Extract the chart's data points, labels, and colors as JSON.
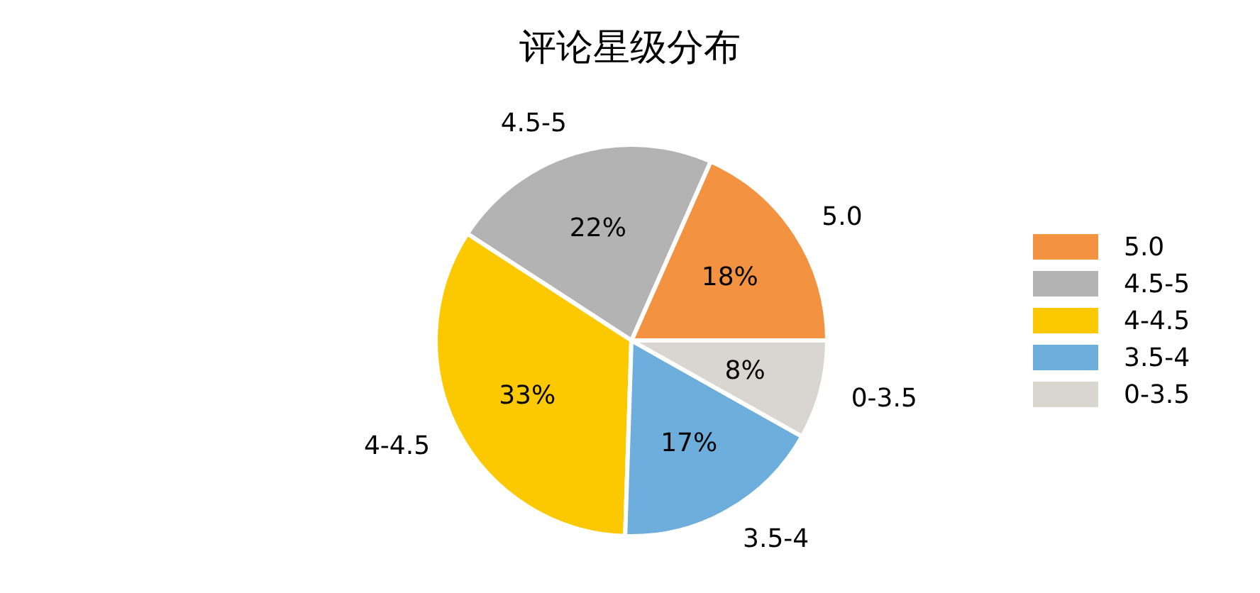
{
  "chart_data": {
    "type": "pie",
    "title": "评论星级分布",
    "categories": [
      "5.0",
      "4.5-5",
      "4-4.5",
      "3.5-4",
      "0-3.5"
    ],
    "values": [
      18,
      22,
      33,
      17,
      8
    ],
    "colors": [
      "#f39240",
      "#b3b3b3",
      "#fcc800",
      "#6daedd",
      "#d9d5d0"
    ],
    "value_labels": [
      "18%",
      "22%",
      "33%",
      "17%",
      "8%"
    ],
    "legend": "right"
  }
}
